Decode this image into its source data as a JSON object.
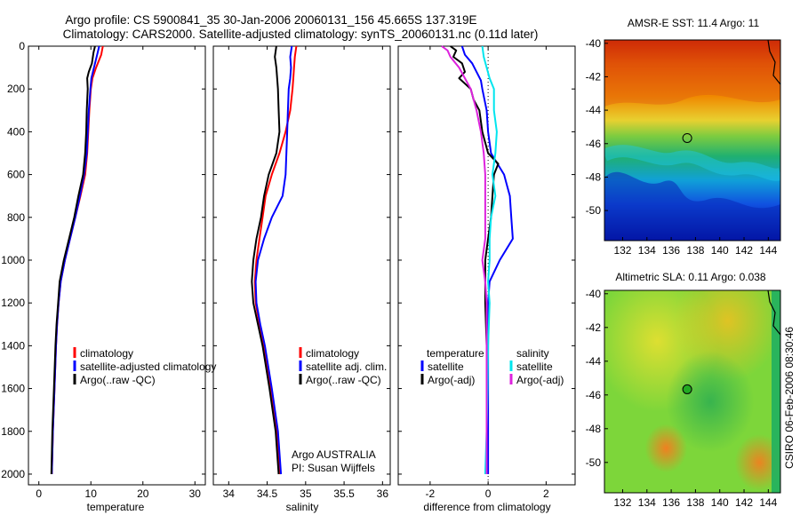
{
  "header": {
    "line1": "Argo profile: CS 5900841_35 30-Jan-2006 20060131_156 45.665S 137.319E",
    "line2": "Climatology: CARS2000. Satellite-adjusted climatology: synTS_20060131.nc (0.11d later)"
  },
  "footer": {
    "credit_line1": "Argo AUSTRALIA",
    "credit_line2": "PI: Susan Wijffels",
    "side_stamp": "CSIRO 06-Feb-2006 08:30:46"
  },
  "colors": {
    "climatology": "#ff0000",
    "satellite": "#0000ff",
    "argo": "#000000",
    "sat_salinity": "#00e5ee",
    "argo_salinity": "#dd22dd"
  },
  "chart_data": [
    {
      "id": "temperature",
      "type": "line",
      "xlabel": "temperature",
      "xlim": [
        -2,
        32
      ],
      "ylim": [
        0,
        2050
      ],
      "xticks": [
        0,
        10,
        20,
        30
      ],
      "yticks": [
        0,
        200,
        400,
        600,
        800,
        1000,
        1200,
        1400,
        1600,
        1800,
        2000
      ],
      "legend": [
        "climatology",
        "satellite-adjusted climatology",
        "Argo(..raw -QC)"
      ],
      "series": [
        {
          "name": "climatology",
          "color": "#ff0000",
          "depth": [
            0,
            40,
            100,
            150,
            200,
            300,
            400,
            500,
            600,
            700,
            800,
            900,
            1000,
            1100,
            1200,
            1300,
            1400,
            1600,
            1800,
            2000
          ],
          "values": [
            12.3,
            12.0,
            11.0,
            10.3,
            10.0,
            9.7,
            9.5,
            9.3,
            8.9,
            8.0,
            7.0,
            6.0,
            5.0,
            4.2,
            3.8,
            3.5,
            3.3,
            3.0,
            2.7,
            2.5
          ]
        },
        {
          "name": "satellite-adjusted climatology",
          "color": "#0000ff",
          "depth": [
            0,
            40,
            100,
            150,
            200,
            300,
            400,
            500,
            600,
            700,
            800,
            900,
            1000,
            1100,
            1200,
            1300,
            1400,
            1600,
            1800,
            2000
          ],
          "values": [
            11.6,
            11.2,
            10.6,
            10.1,
            9.9,
            9.6,
            9.4,
            9.2,
            8.7,
            7.9,
            7.0,
            6.0,
            5.0,
            4.2,
            3.8,
            3.5,
            3.3,
            3.0,
            2.7,
            2.5
          ]
        },
        {
          "name": "Argo(..raw -QC)",
          "color": "#000000",
          "depth": [
            0,
            30,
            80,
            120,
            150,
            200,
            300,
            400,
            500,
            600,
            700,
            800,
            900,
            1000,
            1100,
            1200,
            1300,
            1400,
            1600,
            1800,
            2000
          ],
          "values": [
            10.8,
            10.5,
            10.2,
            9.6,
            9.3,
            9.4,
            9.2,
            9.1,
            8.9,
            8.5,
            7.6,
            6.8,
            5.8,
            4.8,
            4.0,
            3.7,
            3.4,
            3.2,
            2.9,
            2.6,
            2.4
          ]
        }
      ]
    },
    {
      "id": "salinity",
      "type": "line",
      "xlabel": "salinity",
      "xlim": [
        33.8,
        36.1
      ],
      "ylim": [
        0,
        2050
      ],
      "xticks": [
        34,
        34.5,
        35,
        35.5,
        36
      ],
      "xticklabels": [
        "34",
        "34.5",
        "35",
        "35.5",
        "36"
      ],
      "legend": [
        "climatology",
        "satellite adj. clim.",
        "Argo(..raw -QC)"
      ],
      "series": [
        {
          "name": "climatology",
          "color": "#ff0000",
          "depth": [
            0,
            50,
            100,
            150,
            200,
            300,
            400,
            500,
            600,
            700,
            800,
            900,
            1000,
            1100,
            1200,
            1300,
            1400,
            1600,
            1800,
            2000
          ],
          "values": [
            34.88,
            34.86,
            34.85,
            34.84,
            34.83,
            34.8,
            34.74,
            34.66,
            34.56,
            34.48,
            34.44,
            34.4,
            34.36,
            34.34,
            34.35,
            34.4,
            34.46,
            34.55,
            34.63,
            34.67
          ]
        },
        {
          "name": "satellite adj. clim.",
          "color": "#0000ff",
          "depth": [
            0,
            50,
            100,
            150,
            200,
            300,
            400,
            500,
            600,
            700,
            800,
            900,
            1000,
            1100,
            1200,
            1300,
            1400,
            1600,
            1800,
            2000
          ],
          "values": [
            34.82,
            34.8,
            34.81,
            34.8,
            34.78,
            34.77,
            34.76,
            34.75,
            34.74,
            34.7,
            34.56,
            34.46,
            34.38,
            34.35,
            34.36,
            34.41,
            34.47,
            34.56,
            34.64,
            34.68
          ]
        },
        {
          "name": "Argo(..raw -QC)",
          "color": "#000000",
          "depth": [
            0,
            50,
            100,
            150,
            200,
            300,
            400,
            500,
            600,
            700,
            800,
            900,
            1000,
            1100,
            1200,
            1300,
            1400,
            1600,
            1800,
            2000
          ],
          "values": [
            34.62,
            34.6,
            34.62,
            34.63,
            34.64,
            34.65,
            34.66,
            34.62,
            34.52,
            34.46,
            34.42,
            34.36,
            34.32,
            34.3,
            34.32,
            34.38,
            34.44,
            34.53,
            34.61,
            34.65
          ]
        }
      ]
    },
    {
      "id": "difference",
      "type": "line",
      "xlabel": "difference from climatology",
      "xlim": [
        -3.1,
        3.0
      ],
      "ylim": [
        0,
        2050
      ],
      "xticks": [
        -2,
        0,
        2
      ],
      "zero_line": true,
      "legend_headers": [
        "temperature",
        "salinity"
      ],
      "legend": [
        "satellite",
        "Argo(-adj)",
        "satellite",
        "Argo(-adj)"
      ],
      "series": [
        {
          "name": "temperature satellite",
          "color": "#0000ff",
          "depth": [
            0,
            40,
            80,
            120,
            160,
            200,
            300,
            400,
            500,
            600,
            650,
            700,
            800,
            900,
            1000,
            1100,
            1200,
            1400,
            1600,
            1800,
            2000
          ],
          "values": [
            -0.9,
            -0.8,
            -0.55,
            -0.4,
            -0.25,
            -0.2,
            -0.05,
            0.0,
            0.1,
            0.55,
            0.65,
            0.75,
            0.8,
            0.85,
            0.4,
            0.05,
            0.0,
            0.0,
            0.0,
            0.0,
            0.0
          ]
        },
        {
          "name": "temperature Argo(-adj)",
          "color": "#000000",
          "depth": [
            0,
            20,
            50,
            80,
            120,
            150,
            200,
            250,
            300,
            400,
            500,
            550,
            600,
            700,
            800,
            900,
            1000,
            1100,
            1200,
            1400,
            1600,
            1800,
            2000
          ],
          "values": [
            -1.3,
            -1.1,
            -1.2,
            -0.9,
            -0.8,
            -1.0,
            -0.6,
            -0.5,
            -0.3,
            -0.2,
            0.0,
            0.35,
            0.2,
            0.15,
            0.1,
            0.0,
            -0.1,
            -0.1,
            -0.1,
            -0.05,
            -0.05,
            -0.05,
            -0.05
          ]
        },
        {
          "name": "salinity satellite",
          "color": "#00e5ee",
          "depth": [
            0,
            50,
            100,
            150,
            200,
            300,
            400,
            500,
            600,
            700,
            800,
            900,
            1000,
            1100,
            1200,
            1400,
            1600,
            1800,
            2000
          ],
          "values": [
            -0.2,
            -0.15,
            -0.05,
            0.05,
            0.2,
            0.2,
            0.3,
            0.25,
            0.15,
            0.25,
            0.1,
            0.05,
            0.05,
            0.0,
            0.05,
            0.0,
            -0.02,
            -0.05,
            -0.1
          ]
        },
        {
          "name": "salinity Argo(-adj)",
          "color": "#dd22dd",
          "depth": [
            0,
            20,
            50,
            100,
            150,
            200,
            300,
            400,
            500,
            600,
            700,
            800,
            900,
            1000,
            1100,
            1200,
            1400,
            1600,
            1800,
            2000
          ],
          "values": [
            -1.6,
            -1.4,
            -1.3,
            -1.0,
            -0.8,
            -0.6,
            -0.4,
            -0.25,
            -0.15,
            -0.1,
            -0.1,
            -0.1,
            -0.1,
            -0.2,
            -0.1,
            -0.05,
            -0.05,
            -0.05,
            -0.05,
            -0.05
          ]
        }
      ]
    },
    {
      "id": "sst_map",
      "type": "heatmap",
      "title": "AMSR-E SST: 11.4 Argo: 11",
      "xlim": [
        130.5,
        145
      ],
      "ylim": [
        -51.8,
        -39.8
      ],
      "xticks": [
        132,
        134,
        136,
        138,
        140,
        142,
        144
      ],
      "yticks": [
        -40,
        -42,
        -44,
        -46,
        -48,
        -50
      ],
      "marker": {
        "lon": 137.319,
        "lat": -45.665,
        "fill": "none"
      }
    },
    {
      "id": "sla_map",
      "type": "heatmap",
      "title": "Altimetric SLA: 0.11 Argo: 0.038",
      "xlim": [
        130.5,
        145
      ],
      "ylim": [
        -51.8,
        -39.8
      ],
      "xticks": [
        132,
        134,
        136,
        138,
        140,
        142,
        144
      ],
      "yticks": [
        -40,
        -42,
        -44,
        -46,
        -48,
        -50
      ],
      "marker": {
        "lon": 137.319,
        "lat": -45.665,
        "fill": "#22aa22"
      }
    }
  ]
}
